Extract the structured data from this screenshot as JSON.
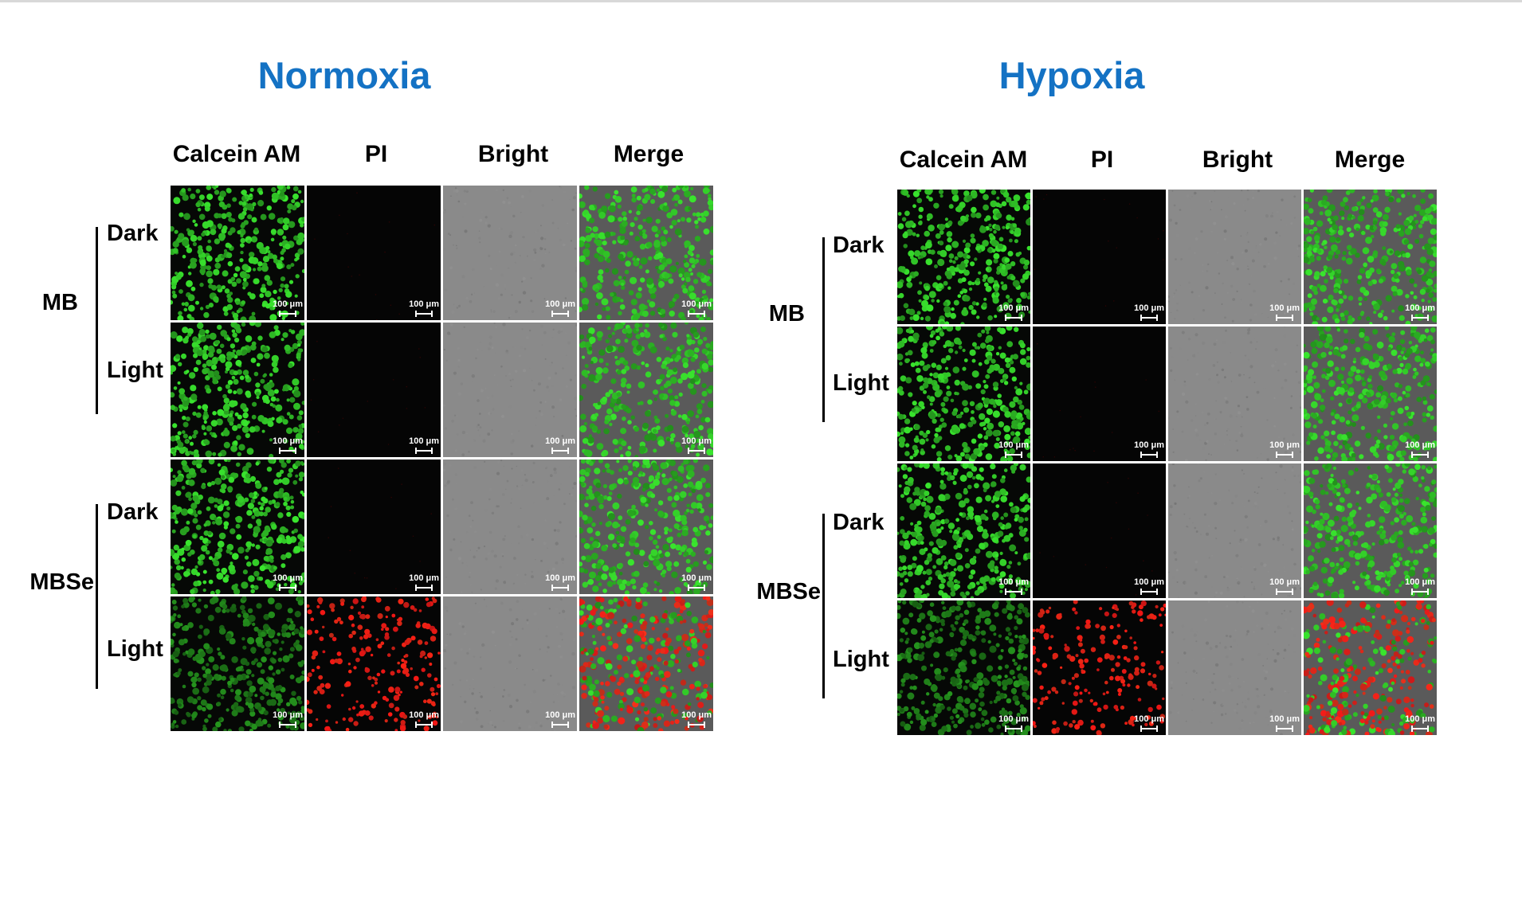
{
  "panels": [
    {
      "title": "Normoxia",
      "columns": [
        "Calcein AM",
        "PI",
        "Bright",
        "Merge"
      ],
      "groups": [
        {
          "label": "MB",
          "rows": [
            "Dark",
            "Light"
          ]
        },
        {
          "label": "MBSe",
          "rows": [
            "Dark",
            "Light"
          ]
        }
      ]
    },
    {
      "title": "Hypoxia",
      "columns": [
        "Calcein AM",
        "PI",
        "Bright",
        "Merge"
      ],
      "groups": [
        {
          "label": "MB",
          "rows": [
            "Dark",
            "Light"
          ]
        },
        {
          "label": "MBSe",
          "rows": [
            "Dark",
            "Light"
          ]
        }
      ]
    }
  ],
  "scale_bar_label": "100 μm",
  "colors": {
    "title": "#1472c4",
    "calcein": "#2fa82f",
    "pi": "#d02020",
    "bright": "#808080",
    "dark_bg": "#050505"
  },
  "red_signal": {
    "normoxia": [
      false,
      false,
      false,
      true
    ],
    "hypoxia": [
      false,
      false,
      false,
      true
    ]
  }
}
